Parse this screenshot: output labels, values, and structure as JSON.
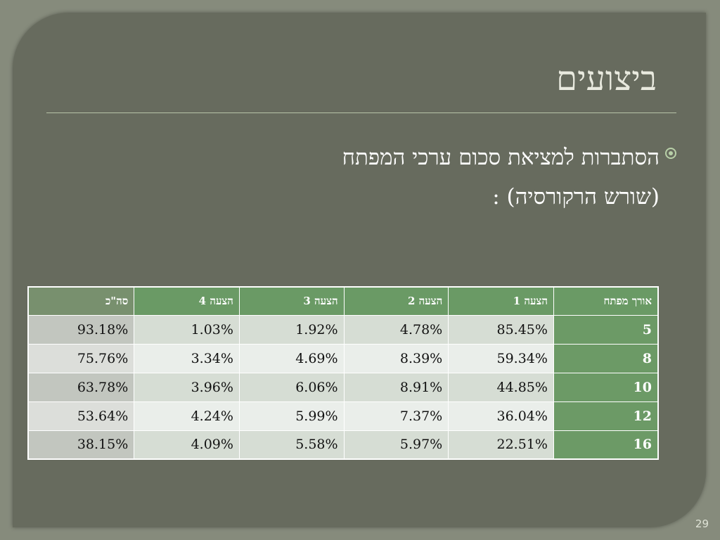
{
  "slide": {
    "title": "ביצועים",
    "bullet_line1": "הסתברות למציאת סכום ערכי המפתח",
    "bullet_line2": "(שורש הרקורסיה) :",
    "page_number": "29",
    "colors": {
      "background": "#676b5e",
      "header_green": "#6a9a65",
      "title_text": "#e9eadf"
    }
  },
  "table": {
    "headers": [
      "אורך מפתח",
      "הצעה 1",
      "הצעה 2",
      "הצעה 3",
      "הצעה 4",
      "סה\"כ"
    ],
    "rows": [
      [
        "5",
        "85.45%",
        "4.78%",
        "1.92%",
        "1.03%",
        "93.18%"
      ],
      [
        "8",
        "59.34%",
        "8.39%",
        "4.69%",
        "3.34%",
        "75.76%"
      ],
      [
        "10",
        "44.85%",
        "8.91%",
        "6.06%",
        "3.96%",
        "63.78%"
      ],
      [
        "12",
        "36.04%",
        "7.37%",
        "5.99%",
        "4.24%",
        "53.64%"
      ],
      [
        "16",
        "22.51%",
        "5.97%",
        "5.58%",
        "4.09%",
        "38.15%"
      ]
    ]
  }
}
